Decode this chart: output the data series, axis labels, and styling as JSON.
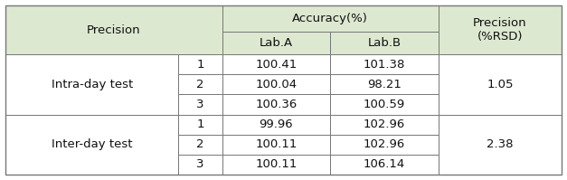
{
  "header_bg": "#dde8d0",
  "body_bg": "#ffffff",
  "border_color": "#777777",
  "rows": [
    [
      "Intra-day test",
      "1",
      "100.41",
      "101.38",
      "1.05"
    ],
    [
      "Intra-day test",
      "2",
      "100.04",
      "98.21",
      "1.05"
    ],
    [
      "Intra-day test",
      "3",
      "100.36",
      "100.59",
      "1.05"
    ],
    [
      "Inter-day test",
      "1",
      "99.96",
      "102.96",
      "2.38"
    ],
    [
      "Inter-day test",
      "2",
      "100.11",
      "102.96",
      "2.38"
    ],
    [
      "Inter-day test",
      "3",
      "100.11",
      "106.14",
      "2.38"
    ]
  ],
  "fig_width": 6.27,
  "fig_height": 1.99,
  "font_size": 9.5
}
